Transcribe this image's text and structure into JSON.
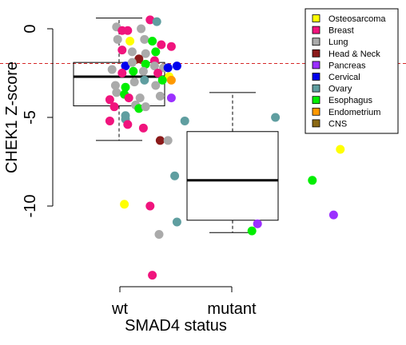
{
  "chart_data": {
    "type": "scatter",
    "title": "",
    "xlabel": "SMAD4 status",
    "ylabel": "CHEK1 Z-score",
    "categories": [
      "wt",
      "mutant"
    ],
    "ylim": [
      -12.5,
      0.9
    ],
    "yticks": [
      0,
      -5,
      -10
    ],
    "ytick_labels": [
      "0",
      "-5",
      "-10"
    ],
    "grid": false,
    "reference_line": {
      "y": -1.96,
      "color": "#d62828",
      "style": "dashed"
    },
    "legend": {
      "position": "top-right",
      "entries": [
        {
          "label": "Osteosarcoma",
          "color": "#ffff00"
        },
        {
          "label": "Breast",
          "color": "#f0147d"
        },
        {
          "label": "Lung",
          "color": "#aaaaaa"
        },
        {
          "label": "Head & Neck",
          "color": "#8b1a1a"
        },
        {
          "label": "Pancreas",
          "color": "#9b30ff"
        },
        {
          "label": "Cervical",
          "color": "#0000ee"
        },
        {
          "label": "Ovary",
          "color": "#5f9ea0"
        },
        {
          "label": "Esophagus",
          "color": "#00ee00"
        },
        {
          "label": "Endometrium",
          "color": "#ff9900"
        },
        {
          "label": "CNS",
          "color": "#8b6914"
        }
      ]
    },
    "boxes": [
      {
        "category": "wt",
        "min": -6.3,
        "q1": -4.35,
        "median": -2.7,
        "q3": -1.9,
        "max": 0.6
      },
      {
        "category": "mutant",
        "min": -11.5,
        "q1": -10.8,
        "median": -8.55,
        "q3": -5.8,
        "max": -3.6
      }
    ],
    "series": [
      {
        "category": "wt",
        "points": [
          {
            "x": 0.97,
            "y": 0.1,
            "type": "Lung"
          },
          {
            "x": 1.02,
            "y": -0.1,
            "type": "Breast"
          },
          {
            "x": 1.07,
            "y": -0.1,
            "type": "Breast"
          },
          {
            "x": 1.19,
            "y": 0.0,
            "type": "Lung"
          },
          {
            "x": 1.27,
            "y": 0.5,
            "type": "Breast"
          },
          {
            "x": 1.33,
            "y": 0.4,
            "type": "Ovary"
          },
          {
            "x": 0.98,
            "y": -0.6,
            "type": "Lung"
          },
          {
            "x": 1.09,
            "y": -0.7,
            "type": "Osteosarcoma"
          },
          {
            "x": 1.22,
            "y": -0.6,
            "type": "Lung"
          },
          {
            "x": 1.29,
            "y": -0.7,
            "type": "Esophagus"
          },
          {
            "x": 1.37,
            "y": -0.9,
            "type": "Breast"
          },
          {
            "x": 1.46,
            "y": -1.0,
            "type": "Breast"
          },
          {
            "x": 1.02,
            "y": -1.2,
            "type": "Breast"
          },
          {
            "x": 1.11,
            "y": -1.3,
            "type": "Lung"
          },
          {
            "x": 1.23,
            "y": -1.4,
            "type": "Lung"
          },
          {
            "x": 1.32,
            "y": -1.3,
            "type": "Esophagus"
          },
          {
            "x": 1.17,
            "y": -1.7,
            "type": "Head & Neck"
          },
          {
            "x": 1.31,
            "y": -1.8,
            "type": "Breast"
          },
          {
            "x": 1.05,
            "y": -2.1,
            "type": "Cervical"
          },
          {
            "x": 1.11,
            "y": -1.9,
            "type": "Lung"
          },
          {
            "x": 1.23,
            "y": -2.0,
            "type": "Esophagus"
          },
          {
            "x": 1.31,
            "y": -2.1,
            "type": "Lung"
          },
          {
            "x": 1.39,
            "y": -2.2,
            "type": "Lung"
          },
          {
            "x": 1.43,
            "y": -2.2,
            "type": "Cervical"
          },
          {
            "x": 1.51,
            "y": -2.1,
            "type": "Cervical"
          },
          {
            "x": 0.93,
            "y": -2.3,
            "type": "Lung"
          },
          {
            "x": 1.02,
            "y": -2.5,
            "type": "Breast"
          },
          {
            "x": 1.12,
            "y": -2.4,
            "type": "Esophagus"
          },
          {
            "x": 1.21,
            "y": -2.4,
            "type": "Lung"
          },
          {
            "x": 1.34,
            "y": -2.5,
            "type": "Breast"
          },
          {
            "x": 1.44,
            "y": -2.7,
            "type": "Osteosarcoma"
          },
          {
            "x": 1.46,
            "y": -2.9,
            "type": "Endometrium"
          },
          {
            "x": 1.38,
            "y": -2.9,
            "type": "Esophagus"
          },
          {
            "x": 0.96,
            "y": -3.2,
            "type": "Lung"
          },
          {
            "x": 1.13,
            "y": -3.0,
            "type": "Lung"
          },
          {
            "x": 1.22,
            "y": -2.9,
            "type": "Ovary"
          },
          {
            "x": 1.32,
            "y": -3.2,
            "type": "Lung"
          },
          {
            "x": 1.05,
            "y": -3.3,
            "type": "Esophagus"
          },
          {
            "x": 0.97,
            "y": -3.6,
            "type": "Lung"
          },
          {
            "x": 1.04,
            "y": -3.7,
            "type": "Esophagus"
          },
          {
            "x": 0.91,
            "y": -4.0,
            "type": "Breast"
          },
          {
            "x": 1.08,
            "y": -3.9,
            "type": "Breast"
          },
          {
            "x": 1.18,
            "y": -3.9,
            "type": "Lung"
          },
          {
            "x": 1.36,
            "y": -3.8,
            "type": "Lung"
          },
          {
            "x": 1.46,
            "y": -3.9,
            "type": "Pancreas"
          },
          {
            "x": 0.95,
            "y": -4.4,
            "type": "Breast"
          },
          {
            "x": 1.14,
            "y": -4.3,
            "type": "Lung"
          },
          {
            "x": 1.17,
            "y": -4.5,
            "type": "Esophagus"
          },
          {
            "x": 1.23,
            "y": -4.4,
            "type": "Lung"
          },
          {
            "x": 1.05,
            "y": -4.9,
            "type": "Ovary"
          },
          {
            "x": 1.05,
            "y": -5.1,
            "type": "Ovary"
          },
          {
            "x": 0.91,
            "y": -5.2,
            "type": "Breast"
          },
          {
            "x": 1.07,
            "y": -5.4,
            "type": "Breast"
          },
          {
            "x": 1.58,
            "y": -5.2,
            "type": "Ovary"
          },
          {
            "x": 1.21,
            "y": -5.6,
            "type": "Breast"
          },
          {
            "x": 1.36,
            "y": -6.3,
            "type": "Head & Neck"
          },
          {
            "x": 1.43,
            "y": -6.3,
            "type": "Lung"
          },
          {
            "x": 1.49,
            "y": -8.3,
            "type": "Ovary"
          },
          {
            "x": 1.04,
            "y": -9.9,
            "type": "Osteosarcoma"
          },
          {
            "x": 1.27,
            "y": -10.0,
            "type": "Breast"
          },
          {
            "x": 1.51,
            "y": -10.9,
            "type": "Ovary"
          },
          {
            "x": 1.35,
            "y": -11.6,
            "type": "Lung"
          },
          {
            "x": 1.29,
            "y": -13.9,
            "type": "Breast"
          }
        ]
      },
      {
        "category": "mutant",
        "points": [
          {
            "x": 2.79,
            "y": -3.6,
            "type": "Breast"
          },
          {
            "x": 2.39,
            "y": -5.0,
            "type": "Ovary"
          },
          {
            "x": 2.97,
            "y": -6.8,
            "type": "Osteosarcoma"
          },
          {
            "x": 2.72,
            "y": -8.55,
            "type": "Esophagus"
          },
          {
            "x": 2.91,
            "y": -10.5,
            "type": "Pancreas"
          },
          {
            "x": 2.23,
            "y": -11.0,
            "type": "Pancreas"
          },
          {
            "x": 2.18,
            "y": -11.4,
            "type": "Esophagus"
          }
        ]
      }
    ]
  }
}
